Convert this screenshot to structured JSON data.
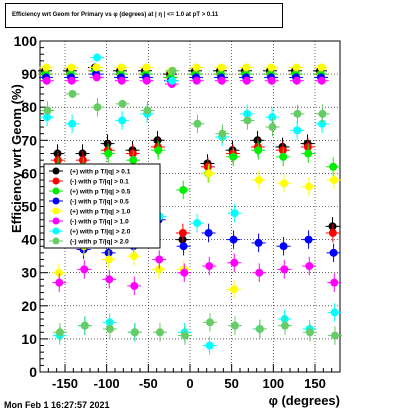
{
  "chart_data": {
    "type": "scatter",
    "title": "Efficiency wrt Geom for Primary vs φ (degrees) at | η | <= 1.0 at pT > 0.11",
    "xlabel": "φ (degrees)",
    "ylabel": "Efficiency wrt Geom (%)",
    "xlim": [
      -180,
      180
    ],
    "ylim": [
      0,
      100
    ],
    "xticks": [
      -150,
      -100,
      -50,
      0,
      50,
      100,
      150
    ],
    "yticks": [
      0,
      10,
      20,
      30,
      40,
      50,
      60,
      70,
      80,
      90,
      100
    ],
    "grid": true,
    "legend_position": "left-middle",
    "x": [
      -172.5,
      -157.5,
      -142.5,
      -127.5,
      -112.5,
      -97.5,
      -82.5,
      -67.5,
      -52.5,
      -37.5,
      -22.5,
      -7.5,
      7.5,
      22.5,
      37.5,
      52.5,
      67.5,
      82.5,
      97.5,
      112.5,
      127.5,
      142.5,
      157.5,
      172.5
    ],
    "series": [
      {
        "name": "(+) with p T/|q| > 0.1",
        "color": "#000000",
        "values": [
          91,
          66,
          91,
          66,
          92,
          69,
          91,
          67,
          91,
          70,
          90,
          40,
          91,
          63,
          91,
          67,
          91,
          70,
          91,
          68,
          91,
          69,
          91,
          44
        ]
      },
      {
        "name": "(-) with p T/|q| > 0.1",
        "color": "#ff0000",
        "values": [
          90,
          64,
          90,
          64,
          91,
          67,
          90,
          66,
          90,
          68,
          89,
          42,
          90,
          62,
          90,
          66,
          90,
          68,
          90,
          67,
          90,
          68,
          90,
          42
        ]
      },
      {
        "name": "(+) with p T/|q| > 0.5",
        "color": "#00ee00",
        "values": [
          90,
          62,
          90,
          62,
          91,
          66,
          90,
          64,
          90,
          67,
          89,
          55,
          90,
          60,
          90,
          65,
          90,
          67,
          90,
          65,
          90,
          66,
          90,
          62
        ]
      },
      {
        "name": "(-) with p T/|q| > 0.5",
        "color": "#0000ff",
        "values": [
          89,
          44,
          89,
          37,
          90,
          36,
          89,
          38,
          89,
          46,
          88,
          38,
          89,
          42,
          89,
          40,
          89,
          39,
          89,
          38,
          89,
          40,
          89,
          36
        ]
      },
      {
        "name": "(+) with p T/|q| > 1.0",
        "color": "#ffff00",
        "values": [
          92,
          30,
          92,
          38,
          92,
          34,
          92,
          35,
          92,
          31,
          91,
          31,
          92,
          60,
          92,
          25,
          92,
          58,
          92,
          57,
          92,
          56,
          92,
          58
        ]
      },
      {
        "name": "(-) with p T/|q| > 1.0",
        "color": "#ff00ff",
        "values": [
          88,
          27,
          88,
          31,
          89,
          28,
          88,
          26,
          88,
          34,
          87,
          30,
          88,
          32,
          88,
          33,
          88,
          30,
          88,
          31,
          88,
          32,
          88,
          27
        ]
      },
      {
        "name": "(+) with p T/|q| > 2.0",
        "color": "#00ffff",
        "values": [
          77,
          11,
          75,
          14,
          95,
          15,
          76,
          12,
          78,
          47,
          88,
          12,
          45,
          8,
          71,
          48,
          78,
          13,
          77,
          16,
          73,
          13,
          75,
          18
        ]
      },
      {
        "name": "(-) with p T/|q| > 2.0",
        "color": "#66cc66",
        "values": [
          79,
          12,
          84,
          14,
          80,
          13,
          81,
          12,
          79,
          12,
          91,
          11,
          75,
          15,
          72,
          14,
          76,
          13,
          74,
          14,
          78,
          12,
          78,
          11
        ]
      }
    ]
  },
  "footer": {
    "timestamp": "Mon Feb  1 16:27:57 2021"
  }
}
